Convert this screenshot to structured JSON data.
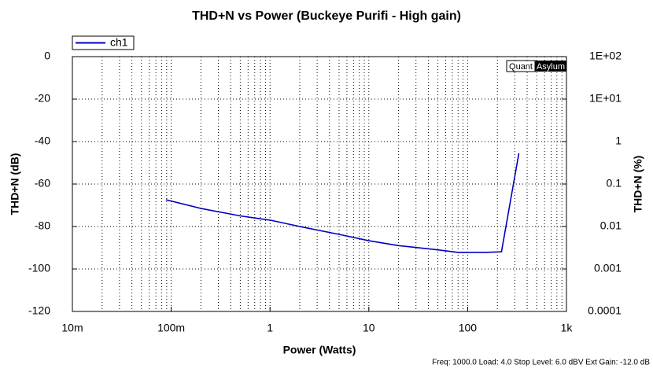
{
  "chart_data": {
    "type": "line",
    "title": "THD+N vs Power (Buckeye Purifi - High gain)",
    "xlabel": "Power (Watts)",
    "ylabel": "THD+N (dB)",
    "y2label": "THD+N (%)",
    "x": [
      0.0885,
      0.2,
      0.5,
      1,
      2,
      5,
      10,
      20,
      50,
      80,
      150,
      220,
      330
    ],
    "series": [
      {
        "name": "ch1",
        "color": "#0000c0",
        "values": [
          -67.4,
          -71.5,
          -75,
          -77,
          -80,
          -83.7,
          -86.7,
          -89,
          -91,
          -92.2,
          -92.2,
          -91.9,
          -45.5
        ]
      }
    ],
    "xlog": true,
    "xlim": [
      0.01,
      1000
    ],
    "xticks": [
      {
        "value": 0.01,
        "label": "10m"
      },
      {
        "value": 0.1,
        "label": "100m"
      },
      1,
      10,
      100,
      {
        "value": 1000,
        "label": "1k"
      }
    ],
    "ylim": [
      -120,
      0
    ],
    "yticks": [
      -120,
      -100,
      -80,
      -60,
      -40,
      -20,
      0
    ],
    "y2log": true,
    "y2lim": [
      0.0001,
      100
    ],
    "y2ticks": [
      {
        "value": 0.0001,
        "label": "0.0001"
      },
      0.001,
      0.01,
      0.1,
      1,
      {
        "value": 10,
        "label": "1E+01"
      },
      {
        "value": 100,
        "label": "1E+02"
      }
    ],
    "grid": true,
    "legend": "top-left",
    "watermark": [
      "Quant",
      "Asylum"
    ],
    "footnote": "Freq: 1000.0 Load: 4.0 Stop Level: 6.0 dBV  Ext Gain: -12.0 dB"
  }
}
